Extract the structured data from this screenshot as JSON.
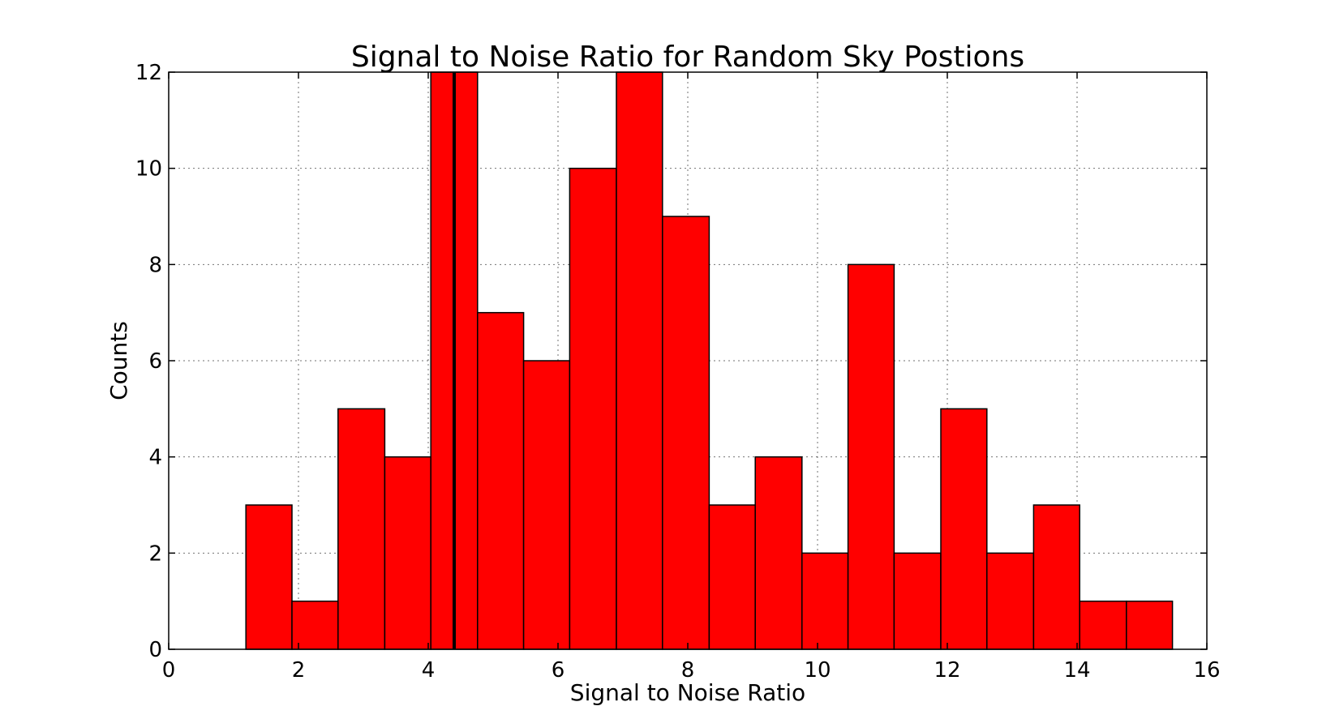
{
  "chart_data": {
    "type": "bar",
    "title": "Signal to Noise Ratio for Random Sky Postions",
    "xlabel": "Signal to Noise Ratio",
    "ylabel": "Counts",
    "xlim": [
      0,
      16
    ],
    "ylim": [
      0,
      12
    ],
    "xticks": [
      "0",
      "2",
      "4",
      "6",
      "8",
      "10",
      "12",
      "14",
      "16"
    ],
    "yticks": [
      "0",
      "2",
      "4",
      "6",
      "8",
      "10",
      "12"
    ],
    "grid": true,
    "bar_color": "#ff0000",
    "bins": {
      "edges": [
        1.19,
        1.9,
        2.61,
        3.33,
        4.04,
        4.76,
        5.47,
        6.18,
        6.9,
        7.61,
        8.33,
        9.04,
        9.76,
        10.47,
        11.18,
        11.9,
        12.61,
        13.33,
        14.04,
        14.76,
        15.47
      ],
      "counts": [
        3,
        1,
        5,
        4,
        12,
        7,
        6,
        10,
        12,
        9,
        3,
        4,
        2,
        8,
        2,
        5,
        2,
        3,
        1,
        1
      ]
    },
    "reference_line": {
      "x": 4.4
    }
  }
}
